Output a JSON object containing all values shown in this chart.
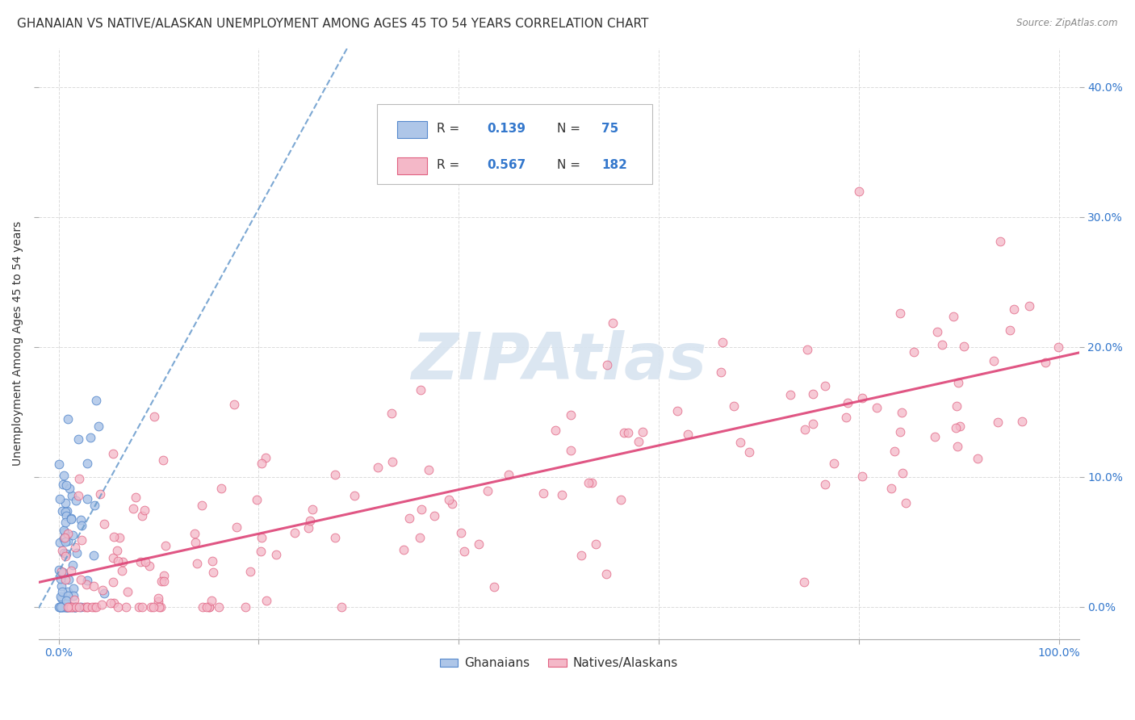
{
  "title": "GHANAIAN VS NATIVE/ALASKAN UNEMPLOYMENT AMONG AGES 45 TO 54 YEARS CORRELATION CHART",
  "source": "Source: ZipAtlas.com",
  "ylabel": "Unemployment Among Ages 45 to 54 years",
  "legend_labels": [
    "Ghanaians",
    "Natives/Alaskans"
  ],
  "R_ghanaian": 0.139,
  "N_ghanaian": 75,
  "R_native": 0.567,
  "N_native": 182,
  "scatter_color_ghanaian": "#aec6e8",
  "scatter_color_native": "#f4b8c8",
  "edge_color_ghanaian": "#5588cc",
  "edge_color_native": "#e06080",
  "trendline_color_ghanaian": "#6699cc",
  "trendline_color_native": "#dd4477",
  "watermark_color": "#d8e4f0",
  "background_color": "#ffffff",
  "grid_color": "#cccccc",
  "title_fontsize": 11,
  "axis_label_fontsize": 10,
  "tick_fontsize": 10,
  "legend_text_color": "#333333",
  "legend_value_color": "#3377cc",
  "right_tick_color": "#3377cc"
}
